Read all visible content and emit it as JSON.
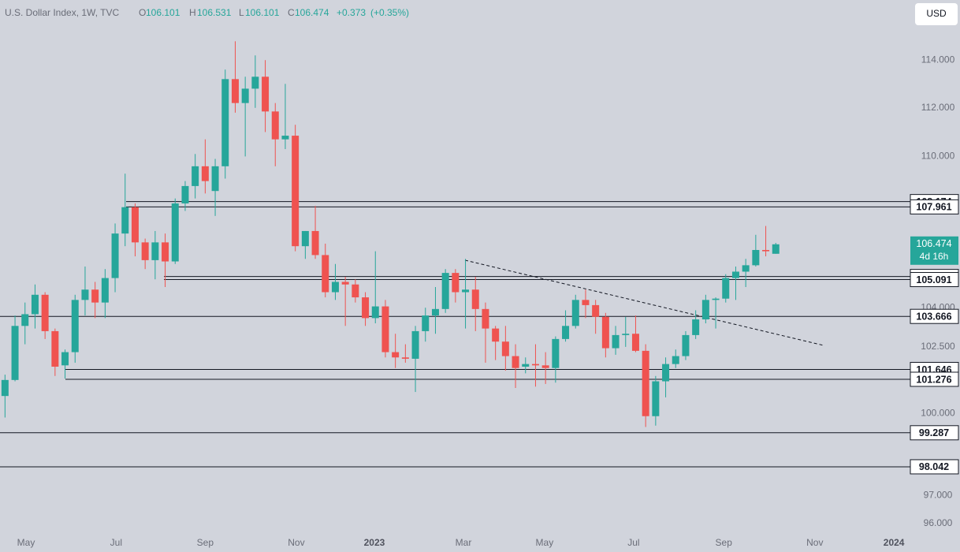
{
  "header": {
    "symbol": "U.S. Dollar Index, 1W, TVC",
    "open_label": "O",
    "open": 106.101,
    "high_label": "H",
    "high": 106.531,
    "low_label": "L",
    "low": 106.101,
    "close_label": "C",
    "close": 106.474,
    "change": "+0.373",
    "change_pct": "(+0.35%)"
  },
  "currency_button": "USD",
  "chart_data": {
    "type": "candlestick",
    "log_scale": true,
    "up_color": "#26a69a",
    "down_color": "#ef5350",
    "open": [
      100.65,
      101.25,
      103.3,
      103.75,
      104.5,
      103.1,
      101.8,
      102.3,
      104.3,
      104.7,
      104.2,
      105.15,
      106.9,
      107.95,
      106.55,
      105.85,
      106.55,
      105.8,
      108.1,
      108.8,
      109.6,
      108.6,
      109.6,
      113.2,
      112.2,
      112.8,
      113.3,
      111.85,
      110.7,
      110.85,
      106.4,
      107.0,
      106.05,
      104.6,
      105.0,
      104.9,
      104.4,
      103.6,
      104.05,
      102.3,
      102.1,
      102.05,
      103.1,
      103.7,
      103.95,
      105.35,
      104.6,
      104.7,
      103.95,
      103.2,
      102.7,
      102.15,
      101.75,
      101.85,
      101.8,
      101.7,
      102.8,
      103.3,
      104.3,
      104.1,
      103.65,
      102.45,
      102.95,
      103.0,
      102.35,
      99.9,
      101.2,
      101.85,
      102.15,
      102.95,
      103.55,
      104.3,
      104.35,
      105.15,
      105.4,
      105.65,
      106.25,
      106.101
    ],
    "high": [
      101.45,
      103.7,
      104.2,
      104.9,
      104.6,
      103.2,
      102.4,
      104.5,
      105.6,
      105.0,
      105.5,
      107.3,
      109.3,
      108.1,
      106.7,
      107.0,
      106.9,
      108.3,
      109.0,
      110.1,
      110.7,
      109.9,
      113.6,
      114.8,
      113.3,
      114.2,
      114.0,
      112.2,
      113.0,
      111.3,
      107.0,
      108.0,
      106.5,
      105.7,
      105.2,
      105.1,
      104.6,
      106.2,
      104.3,
      103.0,
      102.6,
      103.3,
      104.0,
      104.8,
      105.5,
      105.5,
      105.9,
      105.2,
      104.2,
      103.3,
      103.3,
      102.6,
      102.1,
      102.6,
      102.3,
      102.9,
      103.9,
      104.5,
      104.7,
      104.3,
      103.8,
      103.3,
      103.65,
      103.7,
      102.6,
      101.4,
      102.1,
      102.4,
      103.1,
      103.9,
      104.5,
      104.4,
      105.3,
      105.6,
      105.9,
      106.85,
      107.2,
      106.531
    ],
    "low": [
      99.85,
      101.2,
      102.6,
      103.2,
      102.8,
      101.4,
      101.3,
      101.9,
      103.7,
      103.6,
      103.6,
      104.6,
      106.4,
      106.0,
      105.5,
      105.1,
      104.8,
      105.7,
      107.8,
      108.3,
      108.5,
      107.6,
      109.1,
      111.8,
      110.0,
      112.0,
      111.0,
      109.6,
      110.3,
      106.2,
      105.9,
      105.9,
      104.4,
      104.3,
      103.3,
      104.2,
      103.3,
      103.4,
      102.1,
      101.7,
      101.9,
      100.8,
      102.7,
      103.0,
      103.8,
      104.2,
      103.2,
      103.1,
      101.9,
      102.0,
      101.6,
      100.95,
      101.5,
      101.0,
      101.1,
      101.15,
      102.7,
      103.2,
      103.6,
      103.0,
      102.1,
      102.2,
      102.5,
      102.3,
      99.5,
      99.55,
      100.6,
      101.7,
      102.0,
      102.8,
      103.4,
      103.2,
      104.2,
      104.3,
      104.8,
      105.6,
      106.0,
      106.101
    ],
    "close": [
      101.25,
      103.3,
      103.75,
      104.5,
      103.1,
      101.75,
      102.3,
      104.3,
      104.7,
      104.2,
      105.15,
      106.9,
      107.95,
      106.55,
      105.85,
      106.55,
      105.8,
      108.1,
      108.8,
      109.6,
      109.0,
      109.6,
      113.2,
      112.2,
      112.8,
      113.3,
      111.85,
      110.7,
      110.85,
      106.4,
      107.0,
      106.05,
      104.6,
      105.0,
      104.9,
      104.4,
      103.6,
      104.05,
      102.3,
      102.1,
      102.05,
      103.1,
      103.7,
      103.95,
      105.35,
      104.6,
      104.7,
      103.95,
      103.2,
      102.7,
      102.15,
      101.7,
      101.85,
      101.8,
      101.7,
      102.8,
      103.3,
      104.3,
      104.1,
      103.65,
      102.45,
      102.95,
      103.0,
      102.35,
      99.9,
      101.2,
      101.85,
      102.15,
      102.95,
      103.55,
      104.3,
      104.35,
      105.15,
      105.4,
      105.65,
      106.25,
      106.2,
      106.474
    ],
    "xlim": [
      -0.5,
      90.05
    ],
    "xticks": [
      {
        "value": 2.1,
        "label": "May"
      },
      {
        "value": 11.1,
        "label": "Jul"
      },
      {
        "value": 20.0,
        "label": "Sep"
      },
      {
        "value": 29.1,
        "label": "Nov"
      },
      {
        "value": 36.9,
        "label": "2023"
      },
      {
        "value": 45.8,
        "label": "Mar"
      },
      {
        "value": 53.9,
        "label": "May"
      },
      {
        "value": 62.8,
        "label": "Jul"
      },
      {
        "value": 71.8,
        "label": "Sep"
      },
      {
        "value": 80.9,
        "label": "Nov"
      },
      {
        "value": 88.8,
        "label": "2024"
      }
    ],
    "ylim": [
      95.55,
      116.57
    ],
    "yticks": [
      {
        "value": 114,
        "label": "114.000"
      },
      {
        "value": 112,
        "label": "112.000"
      },
      {
        "value": 110,
        "label": "110.000"
      },
      {
        "value": 104,
        "label": "104.000"
      },
      {
        "value": 102.5,
        "label": "102.500"
      },
      {
        "value": 100,
        "label": "100.000"
      },
      {
        "value": 97,
        "label": "97.000"
      },
      {
        "value": 96,
        "label": "96.000"
      }
    ],
    "levels": [
      108.174,
      107.961,
      105.212,
      105.091,
      103.666,
      101.646,
      101.276,
      99.287,
      98.042
    ],
    "last_price": 106.474,
    "countdown": "4d 16h"
  }
}
